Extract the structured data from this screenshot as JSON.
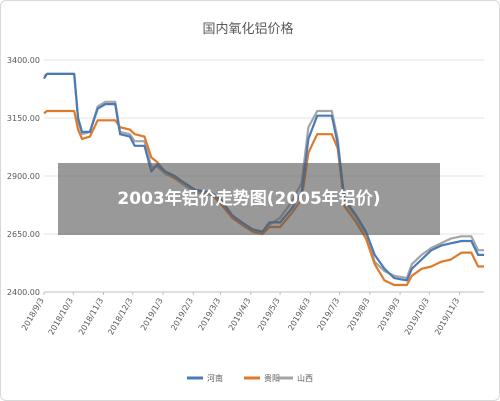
{
  "overlay": {
    "text": "2003年铝价走势图(2005年铝价)"
  },
  "colors": {
    "henan": "#4a7bb7",
    "guiyang": "#e07a2b",
    "shanxi": "#a5a5a5",
    "grid": "#e3e3e3",
    "axis": "#bfbfbf"
  },
  "chart_data": {
    "type": "line",
    "title": "国内氧化铝价格",
    "xlabel": "",
    "ylabel": "",
    "ylim": [
      2400,
      3400
    ],
    "y_ticks": [
      "3400.00",
      "3150.00",
      "2900.00",
      "2650.00",
      "2400.00"
    ],
    "x_ticks": [
      "2018/9/3",
      "2018/10/3",
      "2018/11/3",
      "2018/12/3",
      "2019/1/3",
      "2019/2/3",
      "2019/3/3",
      "2019/4/3",
      "2019/5/3",
      "2019/6/3",
      "2019/7/3",
      "2019/8/3",
      "2019/9/3",
      "2019/10/3",
      "2019/11/3"
    ],
    "grid": true,
    "legend": "bottom",
    "x_start": "2018-09-03",
    "x_end": "2019-11-28",
    "series": [
      {
        "name": "河南",
        "color": "#4a7bb7",
        "points": [
          [
            "2018-09-03",
            3320
          ],
          [
            "2018-09-06",
            3340
          ],
          [
            "2018-10-04",
            3340
          ],
          [
            "2018-10-08",
            3150
          ],
          [
            "2018-10-12",
            3090
          ],
          [
            "2018-10-20",
            3090
          ],
          [
            "2018-10-28",
            3190
          ],
          [
            "2018-11-05",
            3210
          ],
          [
            "2018-11-15",
            3210
          ],
          [
            "2018-11-20",
            3080
          ],
          [
            "2018-11-30",
            3070
          ],
          [
            "2018-12-05",
            3030
          ],
          [
            "2018-12-15",
            3030
          ],
          [
            "2018-12-22",
            2920
          ],
          [
            "2018-12-28",
            2950
          ],
          [
            "2019-01-05",
            2920
          ],
          [
            "2019-01-15",
            2900
          ],
          [
            "2019-01-25",
            2870
          ],
          [
            "2019-02-05",
            2840
          ],
          [
            "2019-02-20",
            2830
          ],
          [
            "2019-03-03",
            2800
          ],
          [
            "2019-03-15",
            2730
          ],
          [
            "2019-03-25",
            2700
          ],
          [
            "2019-04-05",
            2670
          ],
          [
            "2019-04-15",
            2660
          ],
          [
            "2019-04-22",
            2700
          ],
          [
            "2019-05-03",
            2700
          ],
          [
            "2019-05-15",
            2760
          ],
          [
            "2019-05-25",
            2830
          ],
          [
            "2019-06-01",
            3060
          ],
          [
            "2019-06-10",
            3160
          ],
          [
            "2019-06-25",
            3160
          ],
          [
            "2019-07-01",
            3040
          ],
          [
            "2019-07-08",
            2800
          ],
          [
            "2019-07-20",
            2730
          ],
          [
            "2019-07-30",
            2660
          ],
          [
            "2019-08-08",
            2560
          ],
          [
            "2019-08-18",
            2500
          ],
          [
            "2019-08-28",
            2460
          ],
          [
            "2019-09-10",
            2450
          ],
          [
            "2019-09-15",
            2500
          ],
          [
            "2019-09-25",
            2540
          ],
          [
            "2019-10-05",
            2580
          ],
          [
            "2019-10-15",
            2600
          ],
          [
            "2019-10-25",
            2610
          ],
          [
            "2019-11-05",
            2620
          ],
          [
            "2019-11-15",
            2620
          ],
          [
            "2019-11-22",
            2560
          ],
          [
            "2019-11-28",
            2560
          ]
        ]
      },
      {
        "name": "贵阳",
        "color": "#e07a2b",
        "points": [
          [
            "2018-09-03",
            3170
          ],
          [
            "2018-09-06",
            3180
          ],
          [
            "2018-10-04",
            3180
          ],
          [
            "2018-10-08",
            3100
          ],
          [
            "2018-10-12",
            3060
          ],
          [
            "2018-10-20",
            3070
          ],
          [
            "2018-10-28",
            3140
          ],
          [
            "2018-11-05",
            3140
          ],
          [
            "2018-11-15",
            3140
          ],
          [
            "2018-11-20",
            3110
          ],
          [
            "2018-11-30",
            3100
          ],
          [
            "2018-12-05",
            3080
          ],
          [
            "2018-12-15",
            3070
          ],
          [
            "2018-12-22",
            2980
          ],
          [
            "2018-12-28",
            2960
          ],
          [
            "2019-01-05",
            2920
          ],
          [
            "2019-01-15",
            2890
          ],
          [
            "2019-01-25",
            2870
          ],
          [
            "2019-02-05",
            2840
          ],
          [
            "2019-02-20",
            2830
          ],
          [
            "2019-03-03",
            2780
          ],
          [
            "2019-03-15",
            2720
          ],
          [
            "2019-03-25",
            2690
          ],
          [
            "2019-04-05",
            2660
          ],
          [
            "2019-04-15",
            2650
          ],
          [
            "2019-04-22",
            2680
          ],
          [
            "2019-05-03",
            2680
          ],
          [
            "2019-05-15",
            2740
          ],
          [
            "2019-05-25",
            2800
          ],
          [
            "2019-06-01",
            3000
          ],
          [
            "2019-06-10",
            3080
          ],
          [
            "2019-06-25",
            3080
          ],
          [
            "2019-07-01",
            3020
          ],
          [
            "2019-07-08",
            2770
          ],
          [
            "2019-07-20",
            2700
          ],
          [
            "2019-07-30",
            2630
          ],
          [
            "2019-08-08",
            2520
          ],
          [
            "2019-08-18",
            2450
          ],
          [
            "2019-08-28",
            2430
          ],
          [
            "2019-09-10",
            2430
          ],
          [
            "2019-09-15",
            2470
          ],
          [
            "2019-09-25",
            2500
          ],
          [
            "2019-10-05",
            2510
          ],
          [
            "2019-10-15",
            2530
          ],
          [
            "2019-10-25",
            2540
          ],
          [
            "2019-11-05",
            2570
          ],
          [
            "2019-11-15",
            2570
          ],
          [
            "2019-11-22",
            2510
          ],
          [
            "2019-11-28",
            2510
          ]
        ]
      },
      {
        "name": "山西",
        "color": "#a5a5a5",
        "points": [
          [
            "2018-09-03",
            3330
          ],
          [
            "2018-09-06",
            3340
          ],
          [
            "2018-10-04",
            3340
          ],
          [
            "2018-10-08",
            3140
          ],
          [
            "2018-10-12",
            3080
          ],
          [
            "2018-10-20",
            3090
          ],
          [
            "2018-10-28",
            3200
          ],
          [
            "2018-11-05",
            3220
          ],
          [
            "2018-11-15",
            3220
          ],
          [
            "2018-11-20",
            3090
          ],
          [
            "2018-11-30",
            3080
          ],
          [
            "2018-12-05",
            3050
          ],
          [
            "2018-12-15",
            3050
          ],
          [
            "2018-12-22",
            2940
          ],
          [
            "2018-12-28",
            2940
          ],
          [
            "2019-01-05",
            2910
          ],
          [
            "2019-01-15",
            2890
          ],
          [
            "2019-01-25",
            2860
          ],
          [
            "2019-02-05",
            2830
          ],
          [
            "2019-02-20",
            2820
          ],
          [
            "2019-03-03",
            2790
          ],
          [
            "2019-03-15",
            2720
          ],
          [
            "2019-03-25",
            2690
          ],
          [
            "2019-04-05",
            2660
          ],
          [
            "2019-04-15",
            2650
          ],
          [
            "2019-04-22",
            2690
          ],
          [
            "2019-05-03",
            2720
          ],
          [
            "2019-05-15",
            2790
          ],
          [
            "2019-05-25",
            2870
          ],
          [
            "2019-06-01",
            3110
          ],
          [
            "2019-06-10",
            3180
          ],
          [
            "2019-06-25",
            3180
          ],
          [
            "2019-07-01",
            3060
          ],
          [
            "2019-07-08",
            2790
          ],
          [
            "2019-07-20",
            2720
          ],
          [
            "2019-07-30",
            2650
          ],
          [
            "2019-08-08",
            2530
          ],
          [
            "2019-08-18",
            2490
          ],
          [
            "2019-08-28",
            2470
          ],
          [
            "2019-09-10",
            2460
          ],
          [
            "2019-09-15",
            2520
          ],
          [
            "2019-09-25",
            2560
          ],
          [
            "2019-10-05",
            2590
          ],
          [
            "2019-10-15",
            2610
          ],
          [
            "2019-10-25",
            2630
          ],
          [
            "2019-11-05",
            2640
          ],
          [
            "2019-11-15",
            2640
          ],
          [
            "2019-11-22",
            2580
          ],
          [
            "2019-11-28",
            2580
          ]
        ]
      }
    ]
  }
}
